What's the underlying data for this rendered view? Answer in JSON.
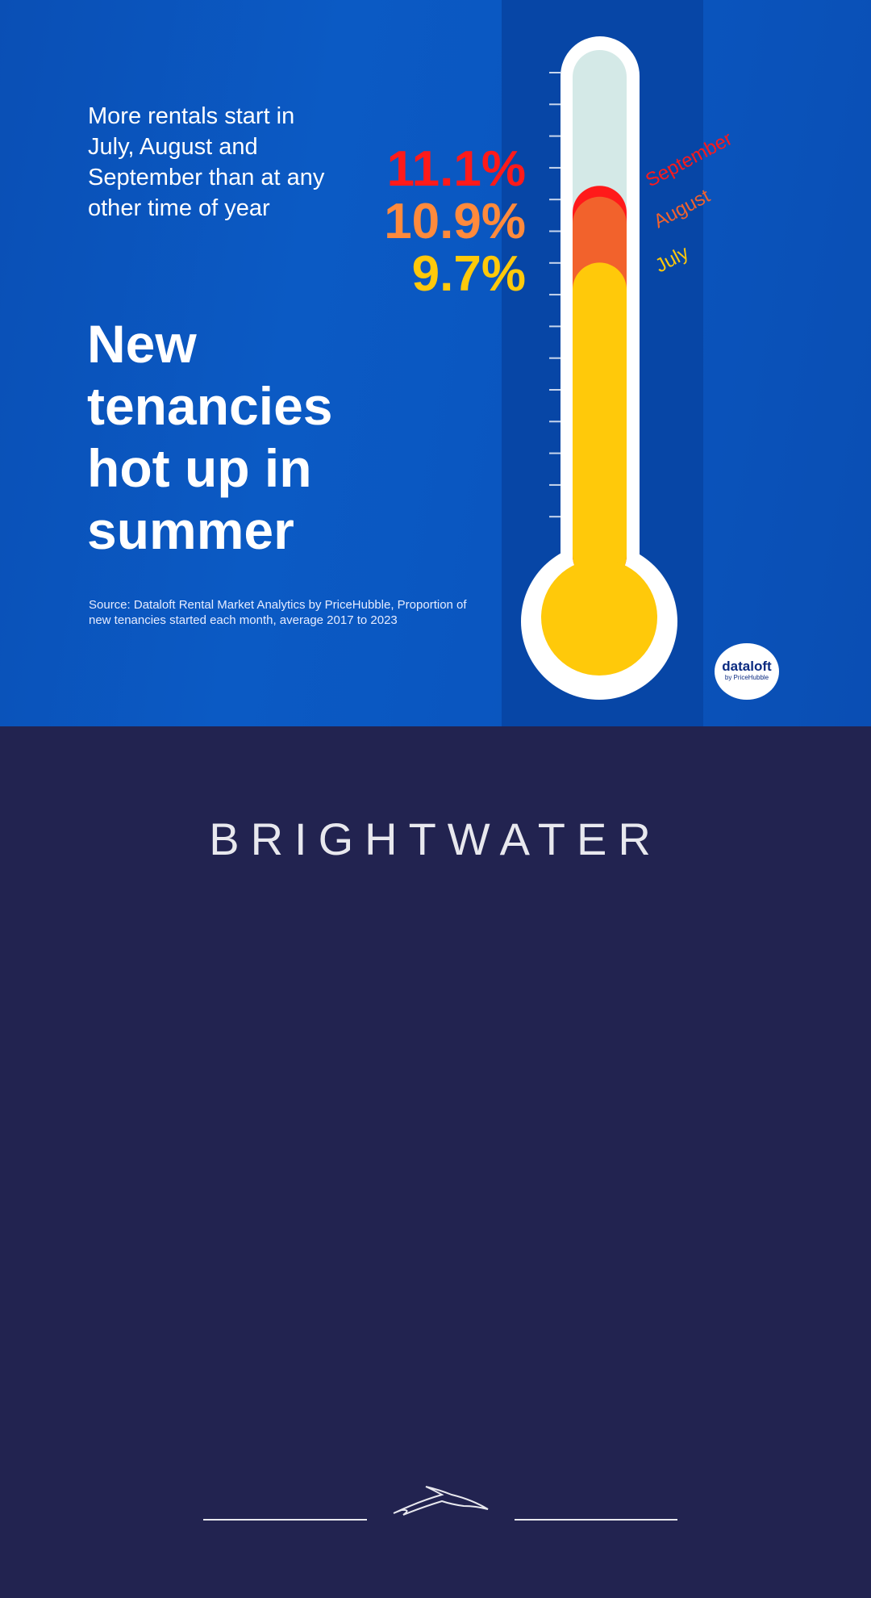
{
  "intro": "More rentals start in July, August and September than at any other time of year",
  "headline": "New tenancies hot up in summer",
  "source": "Source: Dataloft Rental Market Analytics by PriceHubble, Proportion of new tenancies started each month, average 2017 to 2023",
  "chart_data": {
    "type": "thermometer",
    "categories": [
      "September",
      "August",
      "July"
    ],
    "values": [
      11.1,
      10.9,
      9.7
    ],
    "value_labels": [
      "11.1%",
      "10.9%",
      "9.7%"
    ],
    "colors": [
      "#ff1a1a",
      "#f2622c",
      "#ffc90a"
    ]
  },
  "logo": {
    "main": "dataloft",
    "sub": "by PriceHubble"
  },
  "footer": {
    "brand": "BRIGHTWATER"
  },
  "colors": {
    "panel_bg": "#0b55c0",
    "footer_bg": "#222350",
    "tube_empty": "#d4e9e7",
    "september": "#ff1a1a",
    "august": "#f2622c",
    "july": "#ffc90a"
  }
}
